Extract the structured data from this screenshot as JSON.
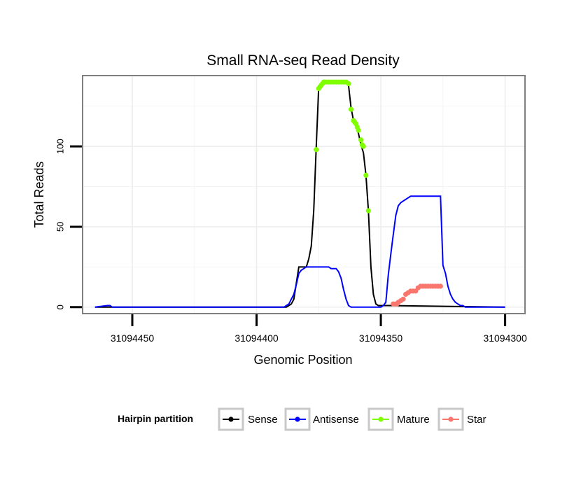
{
  "chart_data": {
    "type": "line",
    "title": "Small RNA-seq Read Density",
    "xlabel": "Genomic Position",
    "ylabel": "Total Reads",
    "x_reversed": true,
    "xlim": [
      31094470,
      31094292
    ],
    "ylim": [
      -4,
      144
    ],
    "x_ticks": [
      31094450,
      31094400,
      31094350,
      31094300
    ],
    "x_tick_labels": [
      "31094450",
      "31094400",
      "31094350",
      "31094300"
    ],
    "y_ticks": [
      0,
      50,
      100
    ],
    "y_tick_labels": [
      "0",
      "50",
      "100"
    ],
    "grid": true,
    "legend": {
      "title": "Hairpin partition",
      "position": "bottom",
      "entries": [
        "Sense",
        "Antisense",
        "Mature",
        "Star"
      ]
    },
    "series": [
      {
        "name": "Sense",
        "color": "#000000",
        "style": "line",
        "x": [
          31094465,
          31094388,
          31094387,
          31094386,
          31094385,
          31094383,
          31094380,
          31094379,
          31094378,
          31094377,
          31094376,
          31094375,
          31094374,
          31094373,
          31094372,
          31094371,
          31094370,
          31094369,
          31094368,
          31094367,
          31094366,
          31094365,
          31094364,
          31094363,
          31094362,
          31094361,
          31094360,
          31094359,
          31094358,
          31094357,
          31094356,
          31094355,
          31094354,
          31094353,
          31094352,
          31094351,
          31094350,
          31094349,
          31094347,
          31094300
        ],
        "y": [
          0,
          0,
          1,
          2,
          5,
          25,
          25,
          30,
          38,
          60,
          100,
          137,
          139,
          140,
          140,
          140,
          140,
          140,
          140,
          140,
          140,
          140,
          140,
          138,
          124,
          116,
          113,
          108,
          101,
          96,
          82,
          60,
          25,
          8,
          2,
          1,
          1,
          1,
          1,
          0
        ]
      },
      {
        "name": "Antisense",
        "color": "#0000ff",
        "style": "line",
        "x": [
          31094465,
          31094460,
          31094459,
          31094458,
          31094389,
          31094388,
          31094387,
          31094386,
          31094385,
          31094384,
          31094383,
          31094382,
          31094381,
          31094380,
          31094379,
          31094378,
          31094377,
          31094376,
          31094375,
          31094374,
          31094373,
          31094372,
          31094371,
          31094370,
          31094369,
          31094368,
          31094367,
          31094366,
          31094365,
          31094364,
          31094363,
          31094362,
          31094361,
          31094360,
          31094359,
          31094358,
          31094357,
          31094356,
          31094355,
          31094354,
          31094353,
          31094352,
          31094351,
          31094350,
          31094349,
          31094348,
          31094347,
          31094346,
          31094345,
          31094344,
          31094343,
          31094342,
          31094341,
          31094340,
          31094339,
          31094338,
          31094337,
          31094336,
          31094335,
          31094334,
          31094333,
          31094332,
          31094331,
          31094330,
          31094329,
          31094328,
          31094327,
          31094326,
          31094325,
          31094324,
          31094323,
          31094322,
          31094321,
          31094320,
          31094319,
          31094318,
          31094317,
          31094316,
          31094315,
          31094314,
          31094313,
          31094300
        ],
        "y": [
          0,
          1,
          1,
          0,
          0,
          1,
          2,
          5,
          8,
          14,
          21,
          23,
          24,
          25,
          25,
          25,
          25,
          25,
          25,
          25,
          25,
          25,
          25,
          24,
          24,
          24,
          22,
          18,
          11,
          5,
          1,
          0,
          0,
          0,
          0,
          0,
          0,
          0,
          0,
          0,
          0,
          0,
          0,
          0,
          1,
          3,
          20,
          33,
          45,
          57,
          63,
          65,
          66,
          67,
          68,
          69,
          69,
          69,
          69,
          69,
          69,
          69,
          69,
          69,
          69,
          69,
          69,
          69,
          26,
          21,
          13,
          8,
          5,
          3,
          2,
          1,
          1,
          0,
          0,
          0,
          0,
          0
        ]
      },
      {
        "name": "Mature",
        "color": "#7fff00",
        "style": "points",
        "x": [
          31094376,
          31094375,
          31094374.5,
          31094374,
          31094373.5,
          31094373,
          31094372.5,
          31094372,
          31094371,
          31094370,
          31094369,
          31094368,
          31094367,
          31094366,
          31094365,
          31094364,
          31094363,
          31094362,
          31094361,
          31094360.5,
          31094360,
          31094359.5,
          31094359,
          31094358,
          31094357.5,
          31094357,
          31094356,
          31094355
        ],
        "y": [
          98,
          136,
          137,
          138,
          139,
          140,
          140,
          140,
          140,
          140,
          140,
          140,
          140,
          140,
          140,
          140,
          139,
          123,
          116,
          115,
          114,
          112,
          110,
          104,
          101,
          100,
          82,
          60
        ]
      },
      {
        "name": "Star",
        "color": "#f8766d",
        "style": "points",
        "x": [
          31094345,
          31094344,
          31094343.5,
          31094343,
          31094342,
          31094341,
          31094340,
          31094339,
          31094338,
          31094337,
          31094336,
          31094335,
          31094334,
          31094333,
          31094332,
          31094331,
          31094330,
          31094329,
          31094328,
          31094327,
          31094326
        ],
        "y": [
          2,
          2,
          2,
          3,
          4,
          5,
          8,
          9,
          10,
          10,
          10,
          12,
          13,
          13,
          13,
          13,
          13,
          13,
          13,
          13,
          13
        ]
      }
    ]
  }
}
